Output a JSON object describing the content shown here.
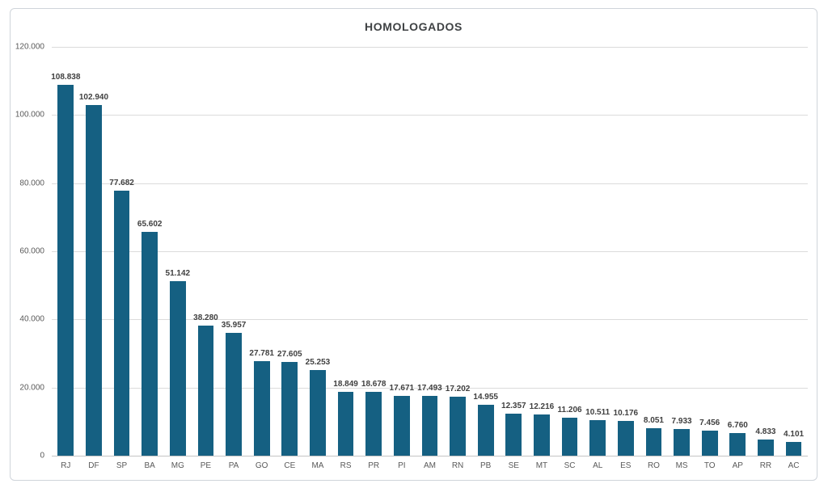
{
  "window": {
    "background": "#ffffff",
    "frame_border_color": "#cfd4da"
  },
  "chart_data": {
    "type": "bar",
    "title": "HOMOLOGADOS",
    "xlabel": "",
    "ylabel": "",
    "categories": [
      "RJ",
      "DF",
      "SP",
      "BA",
      "MG",
      "PE",
      "PA",
      "GO",
      "CE",
      "MA",
      "RS",
      "PR",
      "PI",
      "AM",
      "RN",
      "PB",
      "SE",
      "MT",
      "SC",
      "AL",
      "ES",
      "RO",
      "MS",
      "TO",
      "AP",
      "RR",
      "AC"
    ],
    "values": [
      108838,
      102940,
      77682,
      65602,
      51142,
      38280,
      35957,
      27781,
      27605,
      25253,
      18849,
      18678,
      17671,
      17493,
      17202,
      14955,
      12357,
      12216,
      11206,
      10511,
      10176,
      8051,
      7933,
      7456,
      6760,
      4833,
      4101
    ],
    "data_labels": [
      "108.838",
      "102.940",
      "77.682",
      "65.602",
      "51.142",
      "38.280",
      "35.957",
      "27.781",
      "27.605",
      "25.253",
      "18.849",
      "18.678",
      "17.671",
      "17.493",
      "17.202",
      "14.955",
      "12.357",
      "12.216",
      "11.206",
      "10.511",
      "10.176",
      "8.051",
      "7.933",
      "7.456",
      "6.760",
      "4.833",
      "4.101"
    ],
    "ylim": [
      0,
      120000
    ],
    "y_ticks": [
      {
        "value": 120000,
        "label": "120.000"
      },
      {
        "value": 100000,
        "label": "100.000"
      },
      {
        "value": 80000,
        "label": "80.000"
      },
      {
        "value": 60000,
        "label": "60.000"
      },
      {
        "value": 40000,
        "label": "40.000"
      },
      {
        "value": 20000,
        "label": "20.000"
      },
      {
        "value": 0,
        "label": "0"
      }
    ],
    "grid": true,
    "legend_position": "none",
    "bar_color": "#156082",
    "data_label_color": "#404040",
    "axis_label_color": "#595959",
    "gridline_color": "#dbdbdb",
    "title_color": "#3f4244"
  }
}
